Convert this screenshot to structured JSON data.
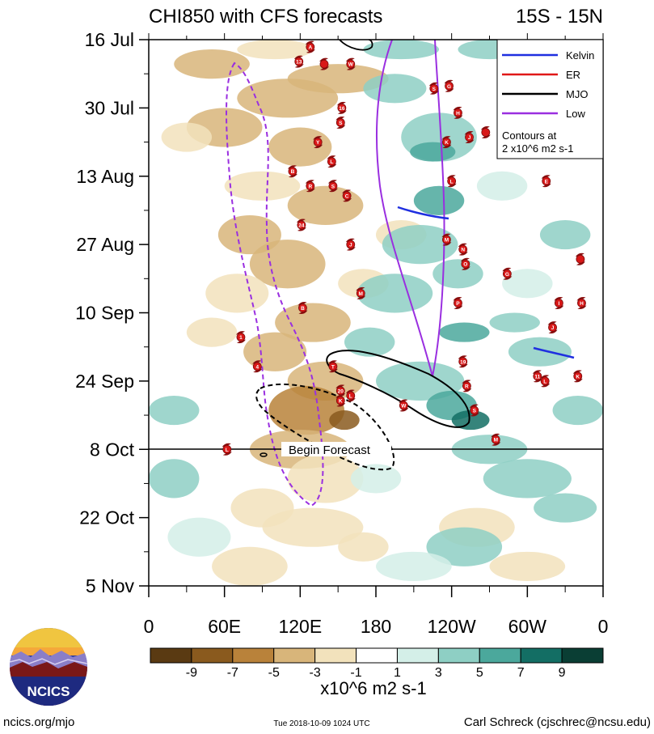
{
  "chart_data": {
    "type": "heatmap",
    "title_left": "CHI850 with CFS forecasts",
    "title_right": "15S - 15N",
    "x_ticks": [
      "0",
      "60E",
      "120E",
      "180",
      "120W",
      "60W",
      "0"
    ],
    "x_tick_lons": [
      0,
      60,
      120,
      180,
      240,
      300,
      360
    ],
    "y_ticks": [
      "16 Jul",
      "30 Jul",
      "13 Aug",
      "27 Aug",
      "10 Sep",
      "24 Sep",
      "8 Oct",
      "22 Oct",
      "5 Nov"
    ],
    "y_tick_days": [
      0,
      14,
      28,
      42,
      56,
      70,
      84,
      98,
      112
    ],
    "forecast_label": "Begin Forecast",
    "forecast_day": 84,
    "colorbar": {
      "labels": [
        "-9",
        "-7",
        "-5",
        "-3",
        "-1",
        "1",
        "3",
        "5",
        "7",
        "9"
      ],
      "levels": [
        -9,
        -7,
        -5,
        -3,
        -1,
        1,
        3,
        5,
        7,
        9
      ],
      "colors": [
        "#5a3a12",
        "#8a5a1e",
        "#b9823a",
        "#d8b57a",
        "#f2e2bc",
        "#ffffff",
        "#d4efe8",
        "#8ecfc4",
        "#4ba89c",
        "#136e64",
        "#0a3e34"
      ],
      "units": "x10^6 m2 s-1"
    },
    "legend": {
      "items": [
        {
          "label": "Kelvin",
          "color": "#1f2fe0"
        },
        {
          "label": "ER",
          "color": "#e01818"
        },
        {
          "label": "MJO",
          "color": "#000000"
        },
        {
          "label": "Low",
          "color": "#9a2fe0"
        }
      ],
      "note_line1": "Contours at",
      "note_line2": "2 x10^6 m2 s-1"
    },
    "storm_markers": [
      {
        "label": "A",
        "lon": 128,
        "day": 1.5
      },
      {
        "label": "13",
        "lon": 119,
        "day": 4.5
      },
      {
        "label": "",
        "lon": 139,
        "day": 5
      },
      {
        "label": "W",
        "lon": 160,
        "day": 5
      },
      {
        "label": "16",
        "lon": 153,
        "day": 14
      },
      {
        "label": "S",
        "lon": 152,
        "day": 17
      },
      {
        "label": "Y",
        "lon": 134,
        "day": 21
      },
      {
        "label": "L",
        "lon": 145,
        "day": 25
      },
      {
        "label": "B",
        "lon": 114,
        "day": 27
      },
      {
        "label": "R",
        "lon": 128,
        "day": 30
      },
      {
        "label": "S",
        "lon": 146,
        "day": 30
      },
      {
        "label": "C",
        "lon": 157,
        "day": 32
      },
      {
        "label": "24",
        "lon": 121,
        "day": 38
      },
      {
        "label": "J",
        "lon": 160,
        "day": 42
      },
      {
        "label": "M",
        "lon": 168,
        "day": 52
      },
      {
        "label": "B",
        "lon": 122,
        "day": 55
      },
      {
        "label": "1",
        "lon": 73,
        "day": 61
      },
      {
        "label": "4",
        "lon": 86,
        "day": 67
      },
      {
        "label": "T",
        "lon": 146,
        "day": 67
      },
      {
        "label": "20",
        "lon": 152,
        "day": 72
      },
      {
        "label": "K",
        "lon": 152,
        "day": 74
      },
      {
        "label": "L",
        "lon": 160,
        "day": 73
      },
      {
        "label": "W",
        "lon": 202,
        "day": 75
      },
      {
        "label": "L",
        "lon": 62,
        "day": 84
      },
      {
        "label": "G",
        "lon": 238,
        "day": 9.5
      },
      {
        "label": "S",
        "lon": 226,
        "day": 10
      },
      {
        "label": "H",
        "lon": 245,
        "day": 15
      },
      {
        "label": "",
        "lon": 267,
        "day": 19
      },
      {
        "label": "J",
        "lon": 254,
        "day": 20
      },
      {
        "label": "K",
        "lon": 236,
        "day": 21
      },
      {
        "label": "L",
        "lon": 240,
        "day": 29
      },
      {
        "label": "E",
        "lon": 315,
        "day": 29
      },
      {
        "label": "M",
        "lon": 236,
        "day": 41
      },
      {
        "label": "N",
        "lon": 249,
        "day": 43
      },
      {
        "label": "O",
        "lon": 251,
        "day": 46
      },
      {
        "label": "G",
        "lon": 284,
        "day": 48
      },
      {
        "label": "",
        "lon": 342,
        "day": 45
      },
      {
        "label": "P",
        "lon": 245,
        "day": 54
      },
      {
        "label": "I",
        "lon": 325,
        "day": 54
      },
      {
        "label": "H",
        "lon": 343,
        "day": 54
      },
      {
        "label": "J",
        "lon": 320,
        "day": 59
      },
      {
        "label": "19",
        "lon": 249,
        "day": 66
      },
      {
        "label": "R",
        "lon": 252,
        "day": 71
      },
      {
        "label": "11",
        "lon": 308,
        "day": 69
      },
      {
        "label": "L",
        "lon": 314,
        "day": 70
      },
      {
        "label": "K",
        "lon": 340,
        "day": 69
      },
      {
        "label": "S",
        "lon": 258,
        "day": 76
      },
      {
        "label": "M",
        "lon": 275,
        "day": 82
      }
    ]
  },
  "footer": {
    "logo_text": "NCICS",
    "url": "ncics.org/mjo",
    "timestamp": "Tue 2018-10-09 1024 UTC",
    "author": "Carl Schreck (cjschrec@ncsu.edu)"
  }
}
